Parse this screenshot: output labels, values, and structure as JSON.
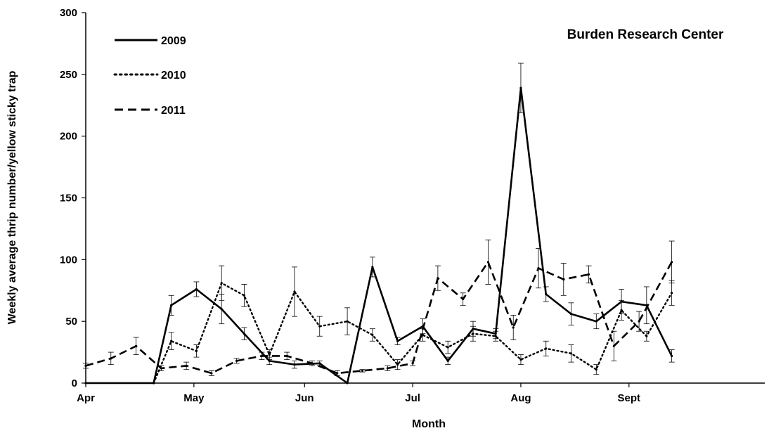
{
  "chart_data": {
    "type": "line",
    "title": "Burden Research Center",
    "xlabel": "Month",
    "ylabel": "Weekly average thrip number/yellow sticky trap",
    "ylim": [
      0,
      300
    ],
    "yticks": [
      0,
      50,
      100,
      150,
      200,
      250,
      300
    ],
    "x_domain": [
      0,
      27
    ],
    "month_ticks": [
      {
        "label": "Apr",
        "x": 0
      },
      {
        "label": "May",
        "x": 4.3
      },
      {
        "label": "Jun",
        "x": 8.7
      },
      {
        "label": "Jul",
        "x": 13.0
      },
      {
        "label": "Aug",
        "x": 17.3
      },
      {
        "label": "Sept",
        "x": 21.6
      }
    ],
    "legend_position": "top-left",
    "series": [
      {
        "name": "2009",
        "style": "solid",
        "points": [
          {
            "x": 0,
            "y": 0,
            "err": null
          },
          {
            "x": 2.7,
            "y": 0,
            "err": null
          },
          {
            "x": 3.4,
            "y": 63,
            "err": 8
          },
          {
            "x": 4.4,
            "y": 76,
            "err": 6
          },
          {
            "x": 5.4,
            "y": 60,
            "err": 12
          },
          {
            "x": 6.3,
            "y": 40,
            "err": 5
          },
          {
            "x": 7.3,
            "y": 18,
            "err": 3
          },
          {
            "x": 8.3,
            "y": 15,
            "err": 3
          },
          {
            "x": 9.3,
            "y": 16,
            "err": 2
          },
          {
            "x": 10.4,
            "y": 0,
            "err": null
          },
          {
            "x": 11.4,
            "y": 94,
            "err": 8
          },
          {
            "x": 12.4,
            "y": 34,
            "err": 3
          },
          {
            "x": 13.4,
            "y": 46,
            "err": 6
          },
          {
            "x": 14.4,
            "y": 18,
            "err": 3
          },
          {
            "x": 15.4,
            "y": 44,
            "err": 6
          },
          {
            "x": 16.3,
            "y": 40,
            "err": 4
          },
          {
            "x": 17.3,
            "y": 239,
            "err": 20
          },
          {
            "x": 18.3,
            "y": 72,
            "err": 6
          },
          {
            "x": 19.3,
            "y": 56,
            "err": 9
          },
          {
            "x": 20.3,
            "y": 50,
            "err": 6
          },
          {
            "x": 21.3,
            "y": 66,
            "err": 10
          },
          {
            "x": 22.3,
            "y": 63,
            "err": 15
          },
          {
            "x": 23.3,
            "y": 22,
            "err": 5
          }
        ]
      },
      {
        "name": "2010",
        "style": "dotted",
        "points": [
          {
            "x": 2.7,
            "y": 0,
            "err": null
          },
          {
            "x": 3.4,
            "y": 34,
            "err": 7
          },
          {
            "x": 4.4,
            "y": 26,
            "err": 5
          },
          {
            "x": 5.4,
            "y": 81,
            "err": 14
          },
          {
            "x": 6.3,
            "y": 71,
            "err": 9
          },
          {
            "x": 7.3,
            "y": 23,
            "err": 4
          },
          {
            "x": 8.3,
            "y": 74,
            "err": 20
          },
          {
            "x": 9.3,
            "y": 46,
            "err": 8
          },
          {
            "x": 10.4,
            "y": 50,
            "err": 11
          },
          {
            "x": 11.4,
            "y": 39,
            "err": 5
          },
          {
            "x": 12.4,
            "y": 15,
            "err": 4
          },
          {
            "x": 13.4,
            "y": 39,
            "err": 5
          },
          {
            "x": 14.4,
            "y": 29,
            "err": 5
          },
          {
            "x": 15.4,
            "y": 40,
            "err": 6
          },
          {
            "x": 16.3,
            "y": 38,
            "err": 4
          },
          {
            "x": 17.3,
            "y": 19,
            "err": 4
          },
          {
            "x": 18.3,
            "y": 28,
            "err": 6
          },
          {
            "x": 19.3,
            "y": 24,
            "err": 7
          },
          {
            "x": 20.3,
            "y": 11,
            "err": 4
          },
          {
            "x": 21.3,
            "y": 59,
            "err": 8
          },
          {
            "x": 22.3,
            "y": 38,
            "err": 4
          },
          {
            "x": 23.3,
            "y": 73,
            "err": 10
          }
        ]
      },
      {
        "name": "2011",
        "style": "dashed",
        "points": [
          {
            "x": 0,
            "y": 14,
            "err": 2
          },
          {
            "x": 1.0,
            "y": 20,
            "err": 5
          },
          {
            "x": 2.0,
            "y": 30,
            "err": 7
          },
          {
            "x": 3.0,
            "y": 12,
            "err": 2
          },
          {
            "x": 4.0,
            "y": 14,
            "err": 3
          },
          {
            "x": 5.0,
            "y": 8,
            "err": 2
          },
          {
            "x": 6.0,
            "y": 18,
            "err": 2
          },
          {
            "x": 7.0,
            "y": 22,
            "err": 3
          },
          {
            "x": 8.0,
            "y": 22,
            "err": 3
          },
          {
            "x": 9.0,
            "y": 16,
            "err": 2
          },
          {
            "x": 10.0,
            "y": 8,
            "err": 2
          },
          {
            "x": 11.0,
            "y": 10,
            "err": 1
          },
          {
            "x": 12.0,
            "y": 12,
            "err": 2
          },
          {
            "x": 13.0,
            "y": 16,
            "err": 2
          },
          {
            "x": 14.0,
            "y": 85,
            "err": 10
          },
          {
            "x": 15.0,
            "y": 68,
            "err": 5
          },
          {
            "x": 16.0,
            "y": 98,
            "err": 18
          },
          {
            "x": 17.0,
            "y": 45,
            "err": 10
          },
          {
            "x": 18.0,
            "y": 93,
            "err": 16
          },
          {
            "x": 19.0,
            "y": 84,
            "err": 13
          },
          {
            "x": 20.0,
            "y": 88,
            "err": 7
          },
          {
            "x": 21.0,
            "y": 30,
            "err": 12
          },
          {
            "x": 22.0,
            "y": 50,
            "err": 8
          },
          {
            "x": 23.3,
            "y": 98,
            "err": 17
          }
        ]
      }
    ]
  }
}
